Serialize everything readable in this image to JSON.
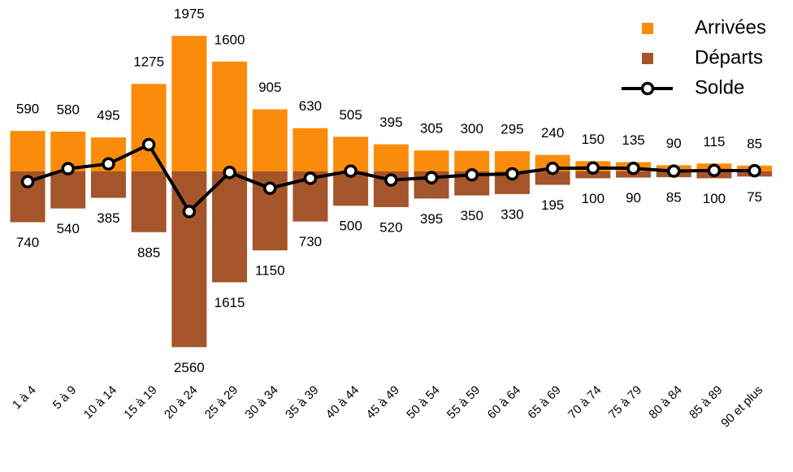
{
  "chart_data": {
    "type": "bar",
    "categories": [
      "1 à 4",
      "5 à 9",
      "10 à 14",
      "15 à 19",
      "20 à 24",
      "25 à 29",
      "30 à 34",
      "35 à 39",
      "40 à 44",
      "45 à 49",
      "50 à 54",
      "55 à 59",
      "60 à 64",
      "65 à 69",
      "70 à 74",
      "75 à 79",
      "80 à 84",
      "85 à 89",
      "90 et plus"
    ],
    "series": [
      {
        "name": "Arrivées",
        "type": "bar",
        "color": "#fb8c0b",
        "values": [
          590,
          580,
          495,
          1275,
          1975,
          1600,
          905,
          630,
          505,
          395,
          305,
          300,
          295,
          240,
          150,
          135,
          90,
          115,
          85
        ]
      },
      {
        "name": "Départs",
        "type": "bar",
        "color": "#a5552a",
        "values": [
          -740,
          -540,
          -385,
          -885,
          -2560,
          -1615,
          -1150,
          -730,
          -500,
          -520,
          -395,
          -350,
          -330,
          -195,
          -100,
          -90,
          -85,
          -100,
          -75
        ],
        "value_labels": [
          "740",
          "540",
          "385",
          "885",
          "2560",
          "1615",
          "1150",
          "730",
          "500",
          "520",
          "395",
          "350",
          "330",
          "195",
          "100",
          "90",
          "85",
          "100",
          "75"
        ]
      },
      {
        "name": "Solde",
        "type": "line",
        "color": "#000000",
        "values": [
          -150,
          40,
          110,
          390,
          -585,
          -15,
          -245,
          -100,
          5,
          -125,
          -90,
          -50,
          -35,
          45,
          50,
          45,
          5,
          15,
          10
        ]
      }
    ],
    "legend": "top-right"
  }
}
